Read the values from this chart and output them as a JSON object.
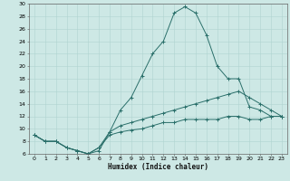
{
  "xlabel": "Humidex (Indice chaleur)",
  "bg_color": "#cde8e5",
  "grid_color": "#afd4d0",
  "line_color": "#2a6f6a",
  "xlim": [
    -0.5,
    23.5
  ],
  "ylim": [
    6,
    30
  ],
  "yticks": [
    6,
    8,
    10,
    12,
    14,
    16,
    18,
    20,
    22,
    24,
    26,
    28,
    30
  ],
  "xticks": [
    0,
    1,
    2,
    3,
    4,
    5,
    6,
    7,
    8,
    9,
    10,
    11,
    12,
    13,
    14,
    15,
    16,
    17,
    18,
    19,
    20,
    21,
    22,
    23
  ],
  "line1_x": [
    0,
    1,
    2,
    3,
    4,
    5,
    6,
    7,
    8,
    9,
    10,
    11,
    12,
    13,
    14,
    15,
    16,
    17,
    18,
    19,
    20,
    21,
    22,
    23
  ],
  "line1_y": [
    9,
    8,
    8,
    7,
    6.5,
    6,
    6.5,
    9.5,
    13,
    15,
    18.5,
    22,
    24,
    28.5,
    29.5,
    28.5,
    25,
    20,
    18,
    18,
    13.5,
    13,
    12,
    12
  ],
  "line2_x": [
    0,
    1,
    2,
    3,
    4,
    5,
    6,
    7,
    8,
    9,
    10,
    11,
    12,
    13,
    14,
    15,
    16,
    17,
    18,
    19,
    20,
    21,
    22,
    23
  ],
  "line2_y": [
    9,
    8,
    8,
    7,
    6.5,
    6,
    7,
    9.5,
    10.5,
    11,
    11.5,
    12,
    12.5,
    13,
    13.5,
    14,
    14.5,
    15,
    15.5,
    16,
    15,
    14,
    13,
    12
  ],
  "line3_x": [
    0,
    1,
    2,
    3,
    4,
    5,
    6,
    7,
    8,
    9,
    10,
    11,
    12,
    13,
    14,
    15,
    16,
    17,
    18,
    19,
    20,
    21,
    22,
    23
  ],
  "line3_y": [
    9,
    8,
    8,
    7,
    6.5,
    6,
    7,
    9,
    9.5,
    9.8,
    10,
    10.5,
    11,
    11,
    11.5,
    11.5,
    11.5,
    11.5,
    12,
    12,
    11.5,
    11.5,
    12,
    12
  ]
}
